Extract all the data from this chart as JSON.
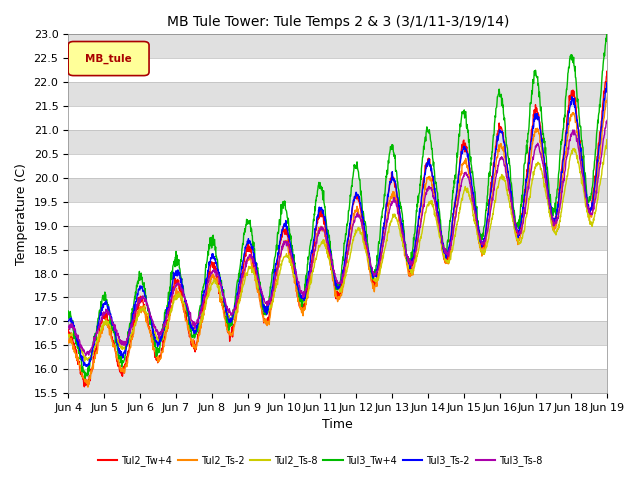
{
  "title": "MB Tule Tower: Tule Temps 2 & 3 (3/1/11-3/19/14)",
  "xlabel": "Time",
  "ylabel": "Temperature (C)",
  "ylim": [
    15.5,
    23.0
  ],
  "yticks": [
    15.5,
    16.0,
    16.5,
    17.0,
    17.5,
    18.0,
    18.5,
    19.0,
    19.5,
    20.0,
    20.5,
    21.0,
    21.5,
    22.0,
    22.5,
    23.0
  ],
  "xtick_labels": [
    "Jun 4",
    "Jun 5",
    "Jun 6",
    "Jun 7",
    "Jun 8",
    "Jun 9",
    "Jun 10",
    "Jun 11",
    "Jun 12",
    "Jun 13",
    "Jun 14",
    "Jun 15",
    "Jun 16",
    "Jun 17",
    "Jun 18",
    "Jun 19"
  ],
  "legend_label": "MB_tule",
  "legend_text_color": "#aa0000",
  "legend_box_color": "#ffff99",
  "legend_border_color": "#aa0000",
  "line_labels": [
    "Tul2_Tw+4",
    "Tul2_Ts-2",
    "Tul2_Ts-8",
    "Tul3_Tw+4",
    "Tul3_Ts-2",
    "Tul3_Ts-8"
  ],
  "line_colors": [
    "#ff0000",
    "#ff8800",
    "#cccc00",
    "#00bb00",
    "#0000ff",
    "#aa00aa"
  ],
  "background_color": "#ffffff",
  "grid_band_color": "#e0e0e0",
  "title_fontsize": 10,
  "axis_fontsize": 9,
  "tick_fontsize": 8,
  "linewidth": 1.0
}
